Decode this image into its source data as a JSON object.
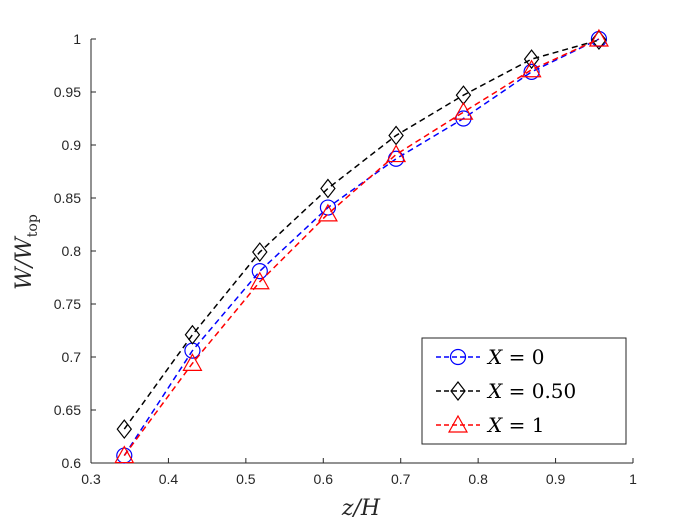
{
  "chart_data": {
    "type": "line",
    "xlabel": "z/H",
    "ylabel_main": "W/W",
    "ylabel_sub": "top",
    "xlim": [
      0.3,
      1.0
    ],
    "ylim": [
      0.6,
      1.0
    ],
    "xticks": [
      "0.3",
      "0.4",
      "0.5",
      "0.6",
      "0.7",
      "0.8",
      "0.9",
      "1"
    ],
    "yticks": [
      "0.6",
      "0.65",
      "0.7",
      "0.75",
      "0.8",
      "0.85",
      "0.9",
      "0.95",
      "1"
    ],
    "x": [
      0.343,
      0.431,
      0.518,
      0.606,
      0.694,
      0.781,
      0.869,
      0.956
    ],
    "legend_position": "bottom-right",
    "series": [
      {
        "name": "X = 0",
        "name_var": "X",
        "name_val": "= 0",
        "marker": "circle",
        "color": "#0000ff",
        "values": [
          0.607,
          0.706,
          0.781,
          0.841,
          0.887,
          0.925,
          0.969,
          1.0
        ]
      },
      {
        "name": "X = 0.50",
        "name_var": "X",
        "name_val": "= 0.50",
        "marker": "diamond",
        "color": "#000000",
        "values": [
          0.632,
          0.721,
          0.799,
          0.859,
          0.909,
          0.947,
          0.981,
          0.999
        ]
      },
      {
        "name": "X = 1",
        "name_var": "X",
        "name_val": "= 1",
        "marker": "triangle",
        "color": "#ff0000",
        "values": [
          0.607,
          0.694,
          0.771,
          0.835,
          0.891,
          0.931,
          0.971,
          1.0
        ]
      }
    ]
  }
}
